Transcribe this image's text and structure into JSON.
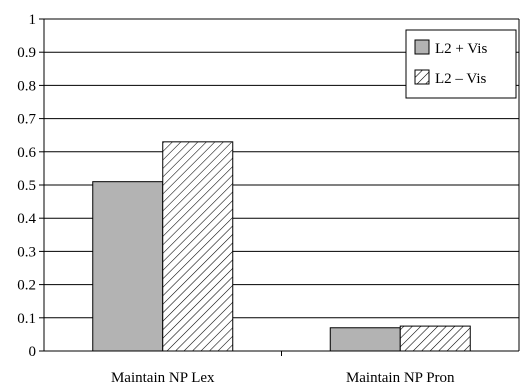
{
  "chart_data": {
    "type": "bar",
    "categories": [
      "Maintain NP Lex",
      "Maintain NP Pron"
    ],
    "series": [
      {
        "name": "L2 + Vis",
        "values": [
          0.51,
          0.07
        ],
        "color": "#b3b3b3",
        "pattern": "solid"
      },
      {
        "name": "L2 – Vis",
        "values": [
          0.63,
          0.075
        ],
        "color": "#ffffff",
        "pattern": "diagonal-hatch"
      }
    ],
    "y_ticks": [
      "0",
      "0.1",
      "0.2",
      "0.3",
      "0.4",
      "0.5",
      "0.6",
      "0.7",
      "0.8",
      "0.9",
      "1"
    ],
    "ylim": [
      0,
      1
    ],
    "grid": true,
    "legend_position": "top-right",
    "title": "",
    "xlabel": "",
    "ylabel": ""
  }
}
